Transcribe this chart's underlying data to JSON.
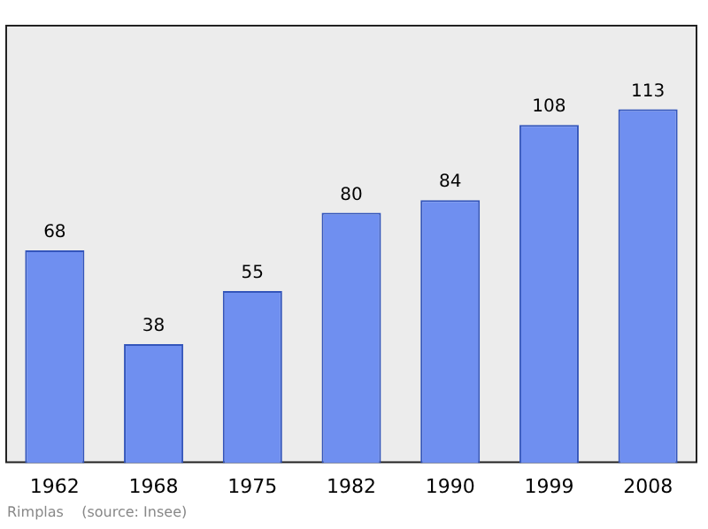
{
  "chart_data": {
    "type": "bar",
    "categories": [
      "1962",
      "1968",
      "1975",
      "1982",
      "1990",
      "1999",
      "2008"
    ],
    "values": [
      68,
      38,
      55,
      80,
      84,
      108,
      113
    ],
    "color": "#6f8ff0",
    "data_labels": true,
    "grid": false,
    "legend": false,
    "tick_labels": "x",
    "annotations": [
      "Rimplas    (source: Insee)"
    ]
  }
}
